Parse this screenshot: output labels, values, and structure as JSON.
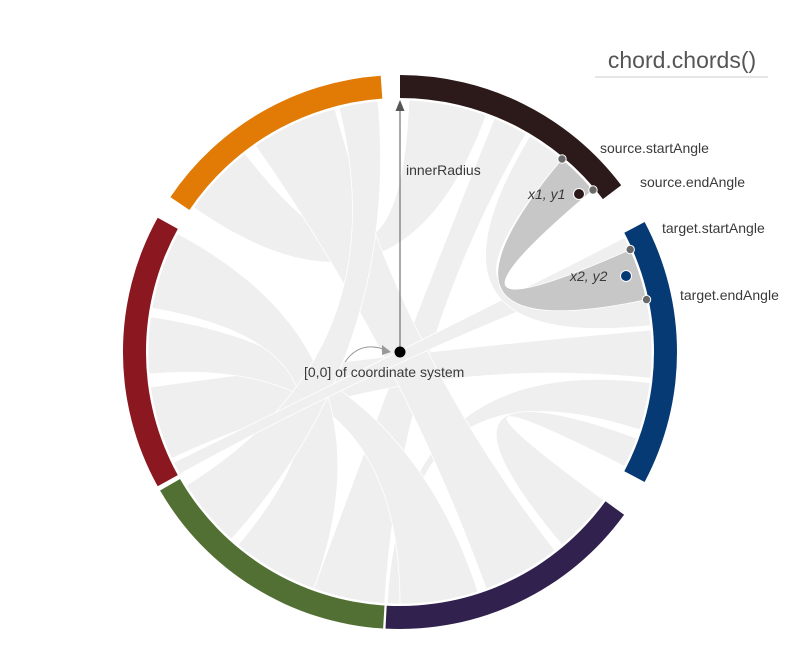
{
  "title": "chord.chords()",
  "labels": {
    "inner_radius": "innerRadius",
    "origin": "[0,0] of coordinate system",
    "source_start": "source.startAngle",
    "source_end": "source.endAngle",
    "target_start": "target.startAngle",
    "target_end": "target.endAngle",
    "point1": "x1, y1",
    "point2": "x2, y2"
  },
  "colors": {
    "groups": [
      "#2c1a1a",
      "#063a75",
      "#30214e",
      "#537034",
      "#8b1821",
      "#e17b06"
    ],
    "ribbon": "#efefef",
    "ribbon_highlight": "#c7c7c7",
    "point1": "#2c1a1a",
    "point2": "#063a75",
    "marker": "#6a6a6a",
    "origin": "#000000"
  }
}
